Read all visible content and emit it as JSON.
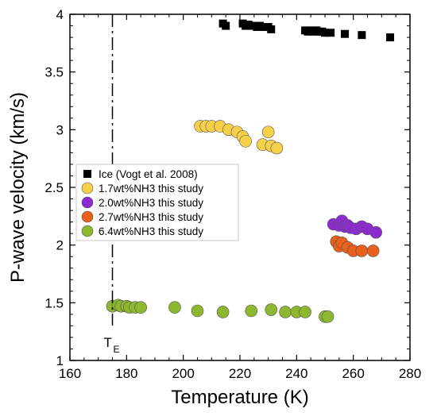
{
  "chart_data": {
    "type": "scatter",
    "xlabel": "Temperature (K)",
    "ylabel": "P-wave velocity (km/s)",
    "xlim": [
      160,
      280
    ],
    "ylim": [
      1,
      4
    ],
    "xticks": [
      160,
      180,
      200,
      220,
      240,
      260,
      280
    ],
    "yticks": [
      1,
      1.5,
      2,
      2.5,
      3,
      3.5,
      4
    ],
    "xtick_labels": [
      "160",
      "180",
      "200",
      "220",
      "240",
      "260",
      "280"
    ],
    "ytick_labels": [
      "1",
      "1.5",
      "2",
      "2.5",
      "3",
      "3.5",
      "4"
    ],
    "grid": false,
    "legend_position": "middle-left",
    "annotation": {
      "label_main": "T",
      "label_sub": "E",
      "x": 175,
      "style": "dash-dot vertical line"
    },
    "series": [
      {
        "name": "Ice (Vogt et al. 2008)",
        "marker": "square",
        "color": "#000000",
        "points": [
          [
            214,
            3.92
          ],
          [
            215,
            3.9
          ],
          [
            221,
            3.92
          ],
          [
            222,
            3.9
          ],
          [
            223,
            3.91
          ],
          [
            224,
            3.9
          ],
          [
            225,
            3.9
          ],
          [
            226,
            3.89
          ],
          [
            227,
            3.9
          ],
          [
            228,
            3.89
          ],
          [
            230,
            3.89
          ],
          [
            231,
            3.87
          ],
          [
            243,
            3.86
          ],
          [
            244,
            3.85
          ],
          [
            245,
            3.86
          ],
          [
            246,
            3.85
          ],
          [
            247,
            3.86
          ],
          [
            248,
            3.85
          ],
          [
            249,
            3.85
          ],
          [
            250,
            3.84
          ],
          [
            252,
            3.84
          ],
          [
            257,
            3.83
          ],
          [
            263,
            3.82
          ],
          [
            273,
            3.8
          ]
        ]
      },
      {
        "name": "1.7wt%NH3 this study",
        "marker": "circle",
        "color": "#f7d04a",
        "points": [
          [
            206,
            3.03
          ],
          [
            208,
            3.03
          ],
          [
            210,
            3.03
          ],
          [
            213,
            3.03
          ],
          [
            216,
            3.0
          ],
          [
            219,
            2.98
          ],
          [
            221,
            2.94
          ],
          [
            222,
            2.9
          ],
          [
            228,
            2.87
          ],
          [
            230,
            2.98
          ],
          [
            231,
            2.86
          ],
          [
            233,
            2.84
          ]
        ]
      },
      {
        "name": "2.0wt%NH3 this study",
        "marker": "circle",
        "color": "#8c2bd0",
        "points": [
          [
            253,
            2.18
          ],
          [
            255,
            2.17
          ],
          [
            256,
            2.21
          ],
          [
            257,
            2.16
          ],
          [
            258,
            2.17
          ],
          [
            259,
            2.15
          ],
          [
            261,
            2.14
          ],
          [
            263,
            2.16
          ],
          [
            265,
            2.14
          ],
          [
            268,
            2.11
          ]
        ]
      },
      {
        "name": "2.7wt%NH3 this study",
        "marker": "circle",
        "color": "#e8601c",
        "points": [
          [
            254,
            2.03
          ],
          [
            255,
            1.99
          ],
          [
            256,
            2.02
          ],
          [
            258,
            1.98
          ],
          [
            260,
            1.95
          ],
          [
            263,
            1.95
          ],
          [
            267,
            1.95
          ]
        ]
      },
      {
        "name": "6.4wt%NH3 this study",
        "marker": "circle",
        "color": "#8db72e",
        "points": [
          [
            175,
            1.47
          ],
          [
            177,
            1.48
          ],
          [
            178,
            1.47
          ],
          [
            180,
            1.47
          ],
          [
            181,
            1.46
          ],
          [
            183,
            1.46
          ],
          [
            185,
            1.46
          ],
          [
            197,
            1.46
          ],
          [
            205,
            1.43
          ],
          [
            214,
            1.42
          ],
          [
            224,
            1.43
          ],
          [
            231,
            1.44
          ],
          [
            236,
            1.42
          ],
          [
            240,
            1.42
          ],
          [
            243,
            1.42
          ],
          [
            250,
            1.38
          ],
          [
            251,
            1.38
          ]
        ]
      }
    ]
  }
}
